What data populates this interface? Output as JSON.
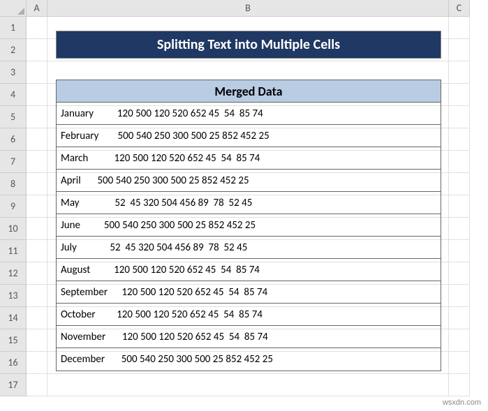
{
  "columns": [
    "A",
    "B",
    "C"
  ],
  "row_count": 17,
  "title_banner": "Splitting Text into Multiple Cells",
  "table": {
    "header": "Merged Data",
    "header_bg": "#b8cce4",
    "rows": [
      "January          120 500 120 520 652 45  54  85 74",
      "February        500 540 250 300 500 25 852 452 25",
      "March           120 500 120 520 652 45  54  85 74",
      "April       500 540 250 300 500 25 852 452 25",
      "May               52  45 320 504 456 89  78  52 45",
      "June          500 540 250 300 500 25 852 452 25",
      "July              52  45 320 504 456 89  78  52 45",
      "August          120 500 120 520 652 45  54  85 74",
      "September      120 500 120 520 652 45  54  85 74",
      "October         120 500 120 520 652 45  54  85 74",
      "November       120 500 120 520 652 45  54  85 74",
      "December       500 540 250 300 500 25 852 452 25"
    ]
  },
  "colors": {
    "banner_bg": "#1f3864",
    "banner_text": "#ffffff",
    "header_cell_bg": "#e6e6e6",
    "grid_line": "#e0e0e0",
    "border": "#666666"
  },
  "watermark": "wsxdn.com"
}
